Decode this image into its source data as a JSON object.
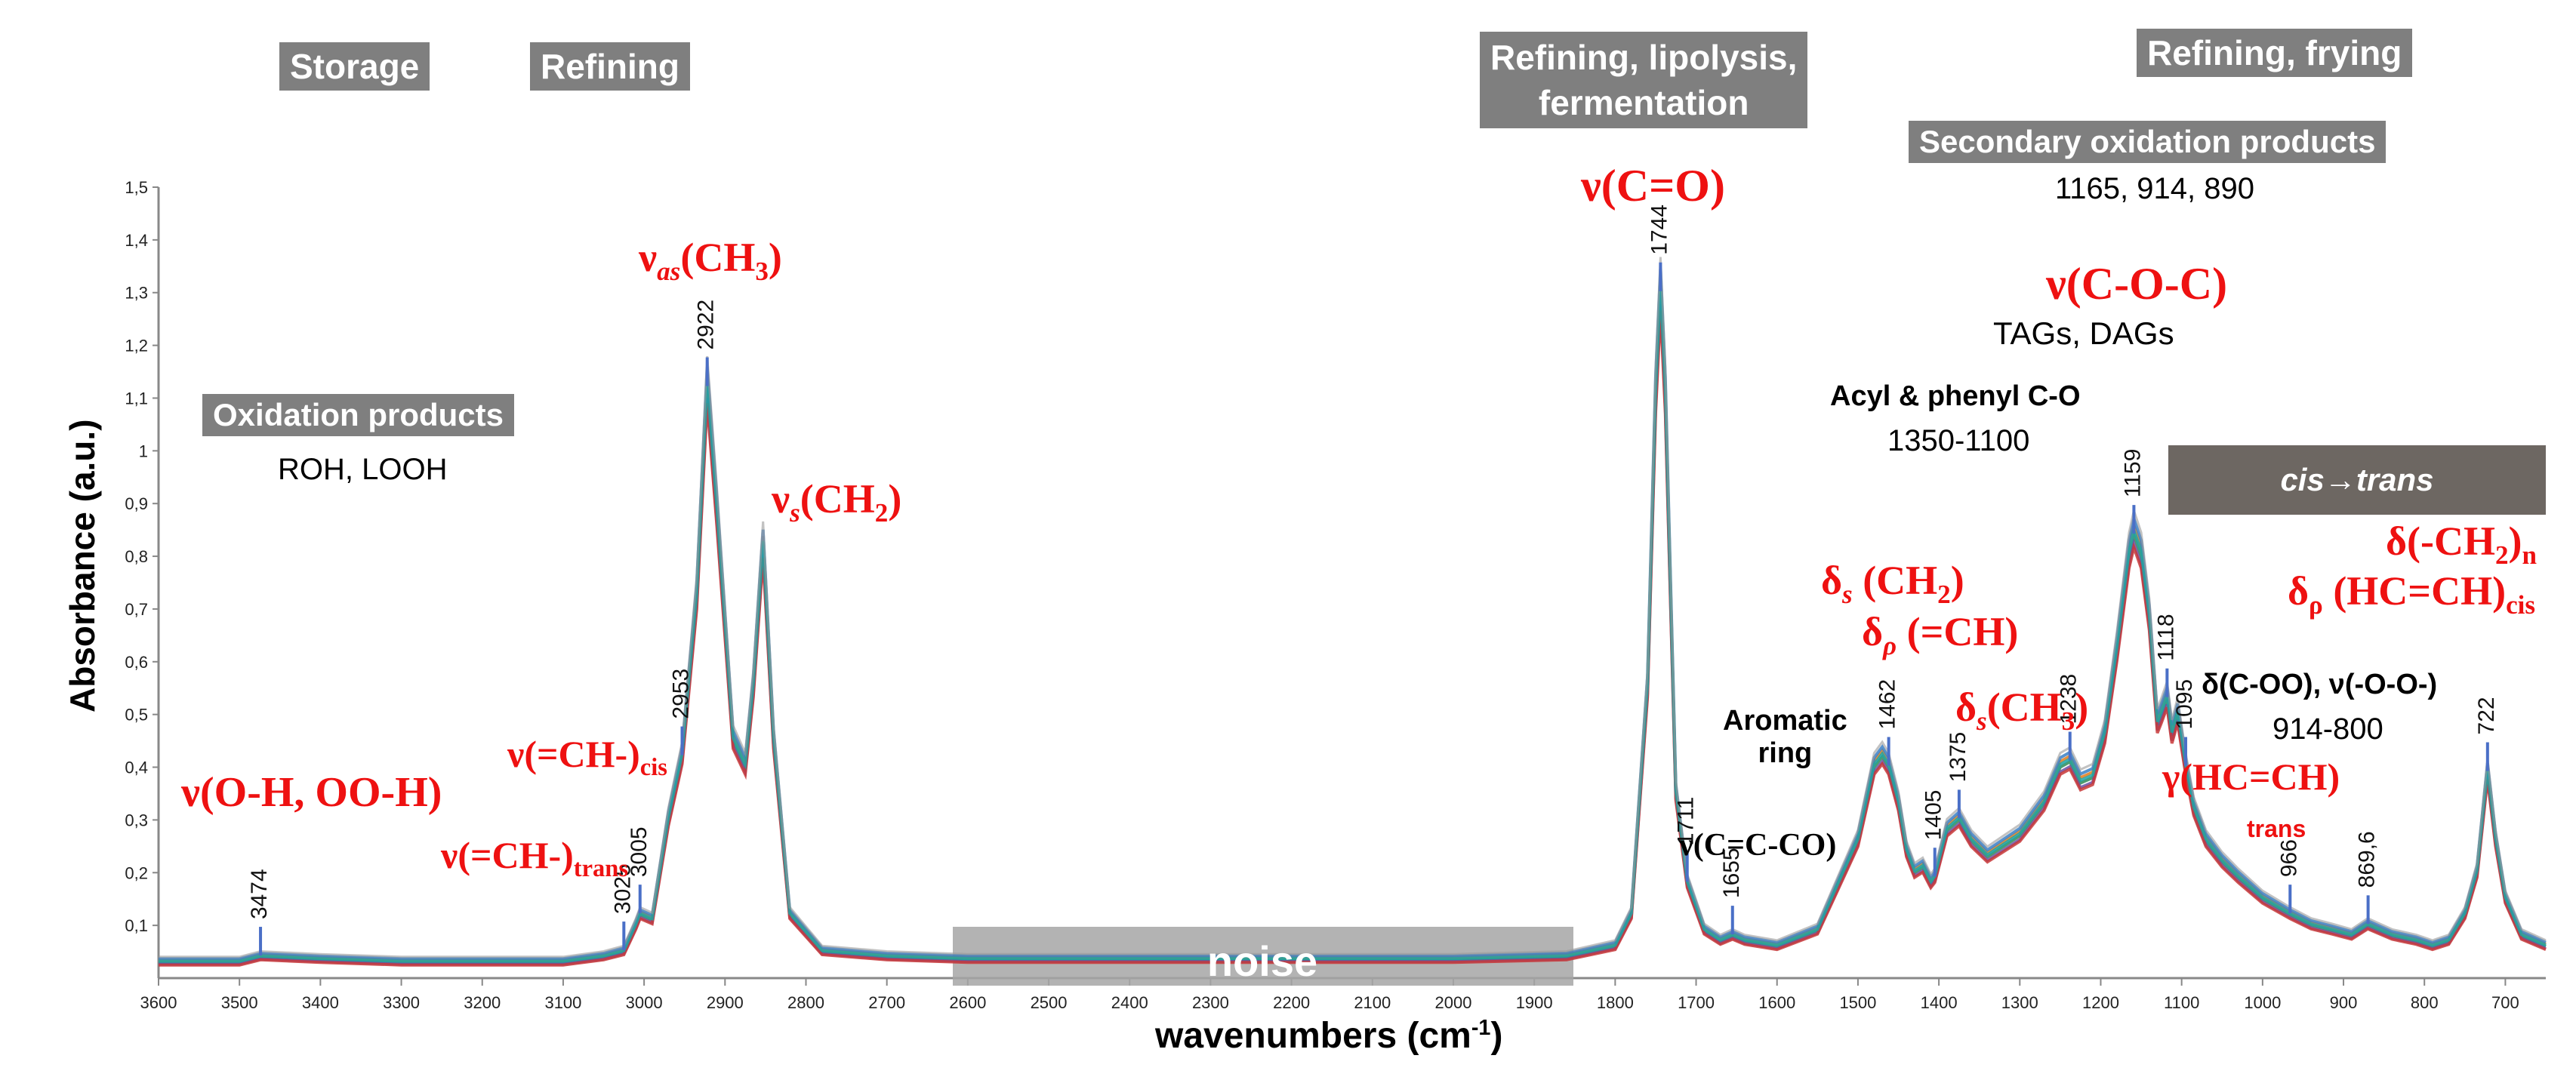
{
  "banners": {
    "storage": "Storage",
    "refining": "Refining",
    "refining_lipolysis_1": "Refining, lipolysis,",
    "refining_lipolysis_2": "fermentation",
    "refining_frying": "Refining, frying",
    "secondary_oxidation": "Secondary oxidation products",
    "oxidation_products": "Oxidation products"
  },
  "notes": {
    "secondary_values": "1165, 914, 890",
    "roh_looh": "ROH, LOOH",
    "tags_dags": "TAGs,  DAGs",
    "acyl_phenyl": "Acyl & phenyl C-O",
    "acyl_range": "1350-1100",
    "aromatic_1": "Aromatic",
    "aromatic_2": "ring",
    "delta_coo": "δ(C-OO), ν(-O-O-)",
    "delta_range": "914-800",
    "nu_ccco": "ν(C=C-CO)",
    "cis_trans": "cis→trans",
    "noise": "noise",
    "trans": "trans"
  },
  "assignments": {
    "nu_co": "ν(C=O)",
    "nu_as_ch3": "νas(CH3)",
    "nu_s_ch2": "νs(CH2)",
    "nu_coc": "ν(C-O-C)",
    "nu_oh": "ν(O-H, OO-H)",
    "nu_ch_cis": "ν(=CH-)cis",
    "nu_ch_trans": "ν(=CH-)trans",
    "delta_s_ch2": "δs (CH2)",
    "delta_rho_ch": "δρ (=CH)",
    "delta_s_ch3": "δs(CH3)",
    "delta_ch2_n": "δ(-CH2)n",
    "delta_rho_hcch": "δρ (HC=CH)cis",
    "gamma_hcch": "γ(HC=CH)"
  },
  "chart_data": {
    "type": "line",
    "title": "",
    "xlabel": "wavenumbers (cm-1)",
    "ylabel": "Absorbance (a.u.)",
    "xlim": [
      3600,
      650
    ],
    "ylim": [
      0,
      1.5
    ],
    "x_reversed": true,
    "x_ticks": [
      3600,
      3500,
      3400,
      3300,
      3200,
      3100,
      3000,
      2900,
      2800,
      2700,
      2600,
      2500,
      2400,
      2300,
      2200,
      2100,
      2000,
      1900,
      1800,
      1700,
      1600,
      1500,
      1400,
      1300,
      1200,
      1100,
      1000,
      900,
      800,
      700
    ],
    "y_ticks": [
      "0,1",
      "0,2",
      "0,3",
      "0,4",
      "0,5",
      "0,6",
      "0,7",
      "0,8",
      "0,9",
      "1",
      "1,1",
      "1,2",
      "1,3",
      "1,4",
      "1,5"
    ],
    "y_tick_values": [
      0.1,
      0.2,
      0.3,
      0.4,
      0.5,
      0.6,
      0.7,
      0.8,
      0.9,
      1.0,
      1.1,
      1.2,
      1.3,
      1.4,
      1.5
    ],
    "series": [
      {
        "color": "#2e8b57",
        "x": [
          3600,
          3500,
          3474,
          3400,
          3300,
          3200,
          3100,
          3050,
          3025,
          3010,
          3005,
          2990,
          2970,
          2953,
          2935,
          2922,
          2910,
          2890,
          2875,
          2865,
          2853,
          2840,
          2820,
          2780,
          2700,
          2600,
          2400,
          2200,
          2000,
          1860,
          1800,
          1780,
          1760,
          1750,
          1744,
          1738,
          1725,
          1711,
          1690,
          1670,
          1655,
          1640,
          1600,
          1550,
          1500,
          1480,
          1470,
          1462,
          1450,
          1440,
          1430,
          1420,
          1410,
          1405,
          1390,
          1375,
          1360,
          1340,
          1300,
          1270,
          1250,
          1238,
          1225,
          1210,
          1195,
          1180,
          1165,
          1159,
          1150,
          1140,
          1130,
          1125,
          1118,
          1112,
          1105,
          1095,
          1085,
          1070,
          1050,
          1030,
          1000,
          966,
          940,
          914,
          890,
          870,
          840,
          810,
          790,
          770,
          750,
          735,
          722,
          712,
          700,
          680,
          650
        ],
        "y": [
          0.03,
          0.03,
          0.04,
          0.035,
          0.03,
          0.03,
          0.03,
          0.04,
          0.05,
          0.1,
          0.12,
          0.11,
          0.3,
          0.42,
          0.72,
          1.12,
          0.88,
          0.45,
          0.4,
          0.55,
          0.82,
          0.45,
          0.12,
          0.05,
          0.04,
          0.035,
          0.035,
          0.035,
          0.035,
          0.04,
          0.06,
          0.12,
          0.55,
          1.1,
          1.3,
          1.1,
          0.35,
          0.18,
          0.09,
          0.07,
          0.08,
          0.07,
          0.06,
          0.09,
          0.26,
          0.4,
          0.42,
          0.4,
          0.33,
          0.24,
          0.2,
          0.21,
          0.18,
          0.19,
          0.28,
          0.3,
          0.26,
          0.23,
          0.27,
          0.33,
          0.4,
          0.41,
          0.37,
          0.38,
          0.46,
          0.62,
          0.8,
          0.84,
          0.8,
          0.68,
          0.48,
          0.5,
          0.53,
          0.46,
          0.5,
          0.4,
          0.32,
          0.26,
          0.22,
          0.19,
          0.15,
          0.12,
          0.1,
          0.09,
          0.08,
          0.1,
          0.08,
          0.07,
          0.06,
          0.07,
          0.12,
          0.2,
          0.39,
          0.26,
          0.15,
          0.08,
          0.06
        ]
      }
    ],
    "peak_labels": [
      {
        "x": 3474,
        "label": "3474"
      },
      {
        "x": 3025,
        "label": "3025"
      },
      {
        "x": 3005,
        "label": "3005"
      },
      {
        "x": 2953,
        "label": "2953"
      },
      {
        "x": 2922,
        "label": "2922"
      },
      {
        "x": 1744,
        "label": "1744"
      },
      {
        "x": 1711,
        "label": "1711"
      },
      {
        "x": 1655,
        "label": "1655"
      },
      {
        "x": 1462,
        "label": "1462"
      },
      {
        "x": 1405,
        "label": "1405"
      },
      {
        "x": 1375,
        "label": "1375"
      },
      {
        "x": 1238,
        "label": "1238"
      },
      {
        "x": 1159,
        "label": "1159"
      },
      {
        "x": 1118,
        "label": "1118"
      },
      {
        "x": 1095,
        "label": "1095"
      },
      {
        "x": 966,
        "label": "966"
      },
      {
        "x": 869.6,
        "label": "869,6"
      },
      {
        "x": 722,
        "label": "722"
      }
    ],
    "legend": "none",
    "grid": false
  },
  "colors": {
    "banner": "#7f7f7f",
    "assignment": "#ee1111",
    "noise_band": "#a6a6a6",
    "cis_trans_bar": "#6d6762"
  }
}
